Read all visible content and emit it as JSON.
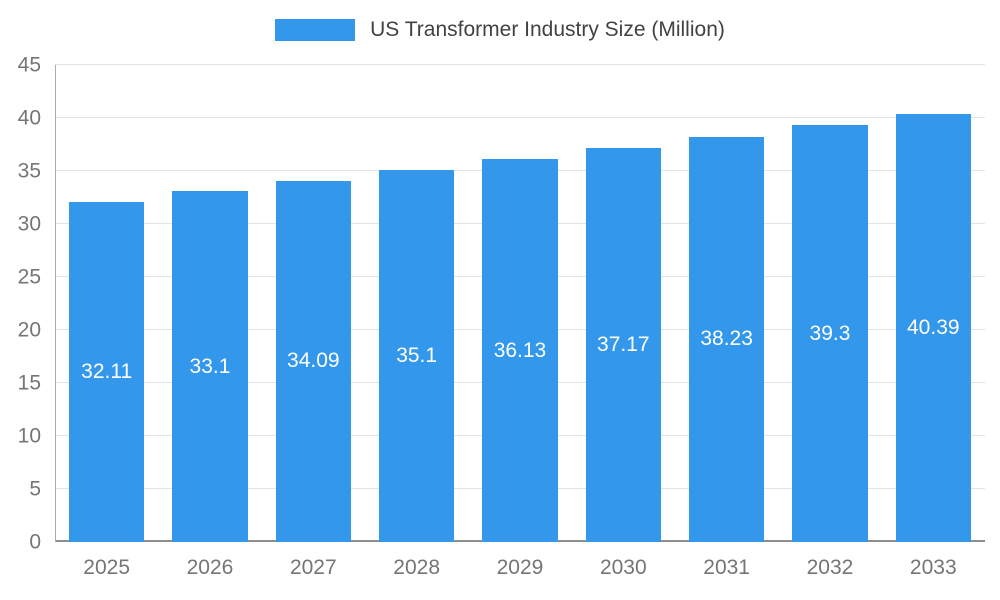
{
  "chart_data": {
    "type": "bar",
    "title": "US Transformer Industry Size (Million)",
    "categories": [
      "2025",
      "2026",
      "2027",
      "2028",
      "2029",
      "2030",
      "2031",
      "2032",
      "2033"
    ],
    "values": [
      32.11,
      33.1,
      34.09,
      35.1,
      36.13,
      37.17,
      38.23,
      39.3,
      40.39
    ],
    "value_labels": [
      "32.11",
      "33.1",
      "34.09",
      "35.1",
      "36.13",
      "37.17",
      "38.23",
      "39.3",
      "40.39"
    ],
    "xlabel": "",
    "ylabel": "",
    "ylim": [
      0,
      45
    ],
    "ytick_step": 5,
    "grid": true,
    "legend_position": "top"
  },
  "colors": {
    "bar": "#3398EC",
    "bar_value_label": "#FFFFFF",
    "legend_text": "#424242",
    "tick_label": "#757575",
    "gridline": "#E3E3E3",
    "axis_line": "#8F8F8F"
  }
}
